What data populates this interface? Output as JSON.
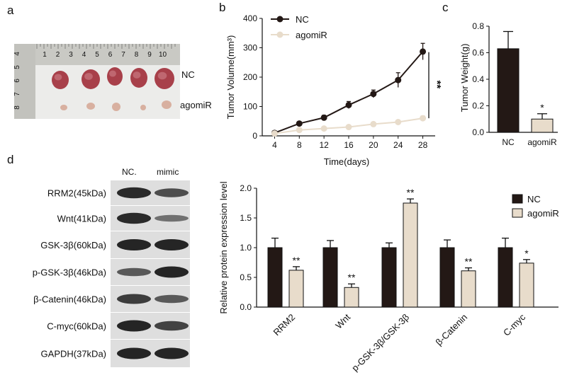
{
  "panels": {
    "a": {
      "letter": "a",
      "row_labels": [
        "NC",
        "agomiR"
      ],
      "ruler_top_numbers": [
        "1",
        "2",
        "3",
        "4",
        "5",
        "6",
        "7",
        "8",
        "9",
        "10"
      ],
      "ruler_side_numbers": [
        "4",
        "5",
        "6",
        "7",
        "8"
      ]
    },
    "d_blot": {
      "letter": "d",
      "column_labels": [
        "NC.",
        "mimic"
      ],
      "row_labels": [
        "RRM2(45kDa)",
        "Wnt(41kDa)",
        "GSK-3β(60kDa)",
        "p-GSK-3β(46kDa)",
        "β-Catenin(46kDa)",
        "C-myc(60kDa)",
        "GAPDH(37kDa)"
      ],
      "band_intensity": {
        "NC": [
          0.95,
          0.95,
          1.0,
          0.55,
          0.8,
          1.0,
          1.0
        ],
        "mimic": [
          0.65,
          0.35,
          1.0,
          1.0,
          0.55,
          0.75,
          1.0
        ]
      }
    }
  },
  "colors": {
    "nc": "#231815",
    "agomir": "#e8dccb",
    "axis": "#111111"
  },
  "chart_data": [
    {
      "panel": "b",
      "type": "line",
      "xlabel": "Time(days)",
      "ylabel": "Tumor Volume(mm³)",
      "xlim": [
        2,
        30
      ],
      "ylim": [
        0,
        400
      ],
      "xticks": [
        4,
        8,
        12,
        16,
        20,
        24,
        28
      ],
      "yticks": [
        0,
        100,
        200,
        300,
        400
      ],
      "x": [
        4,
        8,
        12,
        16,
        20,
        24,
        28
      ],
      "series": [
        {
          "name": "NC",
          "values": [
            10,
            42,
            62,
            105,
            143,
            190,
            287
          ],
          "errors": [
            3,
            5,
            8,
            12,
            13,
            25,
            28
          ]
        },
        {
          "name": "agomiR",
          "values": [
            8,
            20,
            25,
            30,
            40,
            47,
            60
          ],
          "errors": [
            2,
            3,
            3,
            4,
            4,
            5,
            8
          ]
        }
      ],
      "annotation": "**",
      "legend": "top-left"
    },
    {
      "panel": "c",
      "type": "bar",
      "ylabel": "Tumor Weight(g)",
      "categories": [
        "NC",
        "agomiR"
      ],
      "values": [
        0.63,
        0.1
      ],
      "errors": [
        0.13,
        0.04
      ],
      "ylim": [
        0,
        0.8
      ],
      "yticks": [
        "0.0",
        "0.2",
        "0.4",
        "0.6",
        "0.8"
      ],
      "annotations": [
        "",
        "*"
      ]
    },
    {
      "panel": "d",
      "type": "bar",
      "ylabel": "Relative protein expression level",
      "categories": [
        "RRM2",
        "Wnt",
        "p-GSK-3β/GSK-3β",
        "β-Catenin",
        "C-myc"
      ],
      "series": [
        {
          "name": "NC",
          "values": [
            1.0,
            1.0,
            1.0,
            1.0,
            1.0
          ],
          "errors": [
            0.16,
            0.12,
            0.08,
            0.13,
            0.16
          ]
        },
        {
          "name": "agomiR",
          "values": [
            0.62,
            0.33,
            1.75,
            0.61,
            0.74
          ],
          "errors": [
            0.06,
            0.06,
            0.07,
            0.05,
            0.06
          ]
        }
      ],
      "annotations": [
        "**",
        "**",
        "**",
        "**",
        "*"
      ],
      "ylim": [
        0,
        2.0
      ],
      "yticks": [
        "0.0",
        "0.5",
        "1.0",
        "1.5",
        "2.0"
      ],
      "legend": "top-right"
    }
  ]
}
